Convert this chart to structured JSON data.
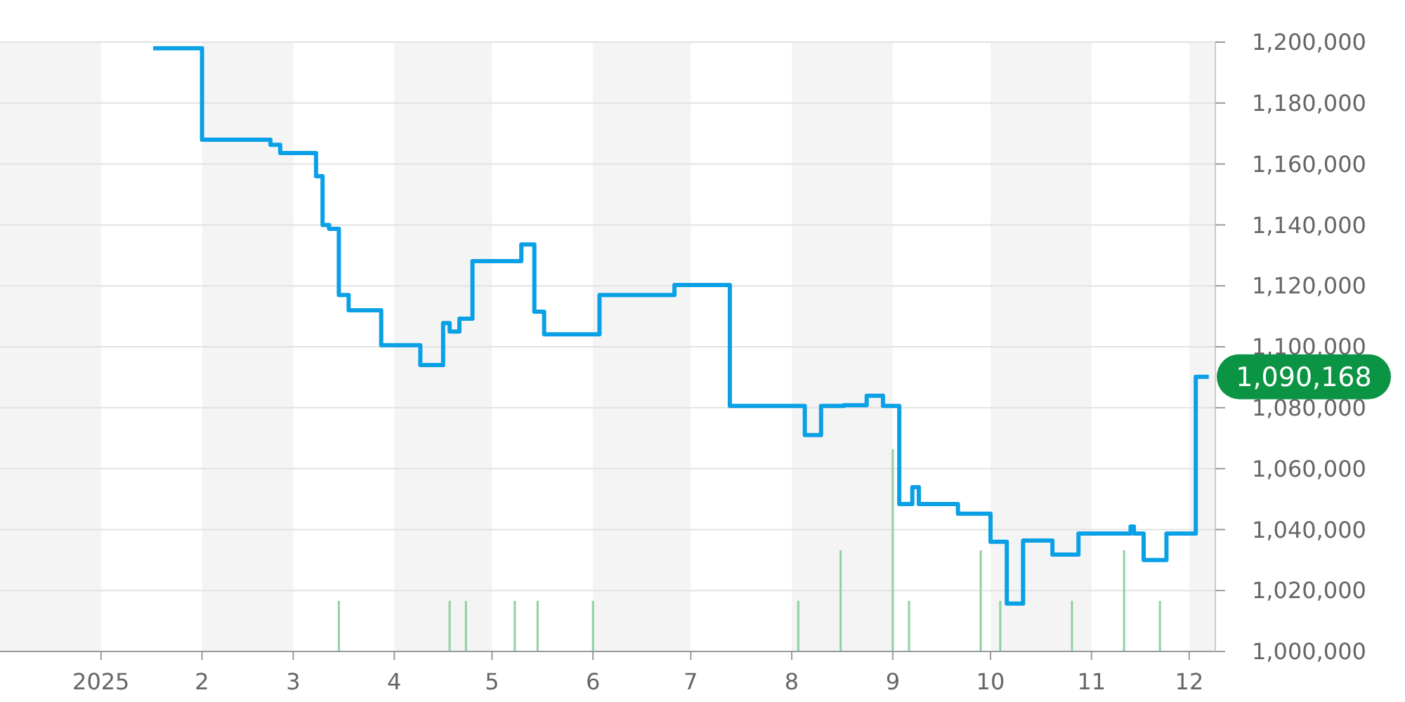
{
  "chart_data": {
    "type": "step",
    "xlim": [
      "2024-12-01",
      "2025-12-09"
    ],
    "xticks": [
      {
        "value": "2025-01-01",
        "label": "2025"
      },
      {
        "value": "2025-02-01",
        "label": "2"
      },
      {
        "value": "2025-03-01",
        "label": "3"
      },
      {
        "value": "2025-04-01",
        "label": "4"
      },
      {
        "value": "2025-05-01",
        "label": "5"
      },
      {
        "value": "2025-06-01",
        "label": "6"
      },
      {
        "value": "2025-07-01",
        "label": "7"
      },
      {
        "value": "2025-08-01",
        "label": "8"
      },
      {
        "value": "2025-09-01",
        "label": "9"
      },
      {
        "value": "2025-10-01",
        "label": "10"
      },
      {
        "value": "2025-11-01",
        "label": "11"
      },
      {
        "value": "2025-12-01",
        "label": "12"
      }
    ],
    "ylim": [
      1000000,
      1200000
    ],
    "yticks": [
      {
        "value": 1000000,
        "label": "1,000,000"
      },
      {
        "value": 1020000,
        "label": "1,020,000"
      },
      {
        "value": 1040000,
        "label": "1,040,000"
      },
      {
        "value": 1060000,
        "label": "1,060,000"
      },
      {
        "value": 1080000,
        "label": "1,080,000"
      },
      {
        "value": 1100000,
        "label": "1,100,000"
      },
      {
        "value": 1120000,
        "label": "1,120,000"
      },
      {
        "value": 1140000,
        "label": "1,140,000"
      },
      {
        "value": 1160000,
        "label": "1,160,000"
      },
      {
        "value": 1180000,
        "label": "1,180,000"
      },
      {
        "value": 1200000,
        "label": "1,200,000"
      }
    ],
    "grid": "y",
    "marker": "none",
    "line_style": "solid",
    "bands": [
      {
        "axis": "x",
        "from": "2024-12-01",
        "to": "2025-01-01",
        "color": "#f4f4f4"
      },
      {
        "axis": "x",
        "from": "2025-02-01",
        "to": "2025-03-01",
        "color": "#f4f4f4"
      },
      {
        "axis": "x",
        "from": "2025-04-01",
        "to": "2025-05-01",
        "color": "#f4f4f4"
      },
      {
        "axis": "x",
        "from": "2025-06-01",
        "to": "2025-07-01",
        "color": "#f4f4f4"
      },
      {
        "axis": "x",
        "from": "2025-08-01",
        "to": "2025-09-01",
        "color": "#f4f4f4"
      },
      {
        "axis": "x",
        "from": "2025-10-01",
        "to": "2025-11-01",
        "color": "#f4f4f4"
      },
      {
        "axis": "x",
        "from": "2025-12-01",
        "to": "2025-12-09",
        "color": "#f4f4f4"
      }
    ],
    "series": [
      {
        "type": "bar",
        "color": "#8fd19e",
        "x": [
          "2025-03-15",
          "2025-04-18",
          "2025-04-23",
          "2025-05-08",
          "2025-05-15",
          "2025-06-01",
          "2025-08-03",
          "2025-08-16",
          "2025-09-01",
          "2025-09-06",
          "2025-09-28",
          "2025-10-04",
          "2025-10-26",
          "2025-11-11",
          "2025-11-22"
        ],
        "values": [
          1016600,
          1016600,
          1016600,
          1016600,
          1016600,
          1016600,
          1016600,
          1033200,
          1066400,
          1016600,
          1033200,
          1016600,
          1016600,
          1033200,
          1016600
        ]
      },
      {
        "color": "#0aa0e6",
        "x": [
          "2025-01-17",
          "2025-02-01",
          "2025-02-22",
          "2025-02-25",
          "2025-03-08",
          "2025-03-10",
          "2025-03-12",
          "2025-03-15",
          "2025-03-18",
          "2025-03-28",
          "2025-04-09",
          "2025-04-16",
          "2025-04-18",
          "2025-04-21",
          "2025-04-25",
          "2025-05-10",
          "2025-05-14",
          "2025-05-17",
          "2025-06-03",
          "2025-06-26",
          "2025-07-13",
          "2025-08-05",
          "2025-08-10",
          "2025-08-17",
          "2025-08-24",
          "2025-08-29",
          "2025-09-03",
          "2025-09-07",
          "2025-09-09",
          "2025-09-21",
          "2025-10-01",
          "2025-10-06",
          "2025-10-11",
          "2025-10-20",
          "2025-10-28",
          "2025-11-12",
          "2025-11-13",
          "2025-11-14",
          "2025-11-17",
          "2025-11-24",
          "2025-12-03",
          "2025-12-07"
        ],
        "values": [
          1198000,
          1168000,
          1166300,
          1163600,
          1156000,
          1140000,
          1138700,
          1117000,
          1112000,
          1100500,
          1094000,
          1107800,
          1105000,
          1109200,
          1128100,
          1133600,
          1111500,
          1104100,
          1117000,
          1120300,
          1080600,
          1071000,
          1080600,
          1080800,
          1083900,
          1080600,
          1048400,
          1053900,
          1048400,
          1045200,
          1036000,
          1015700,
          1036400,
          1031800,
          1038700,
          1038700,
          1041000,
          1038700,
          1030000,
          1038700,
          1090168,
          1090168
        ]
      }
    ],
    "annotations": [
      {
        "text": "1,090,168",
        "x": "2025-12-07",
        "y": 1090168
      }
    ]
  }
}
